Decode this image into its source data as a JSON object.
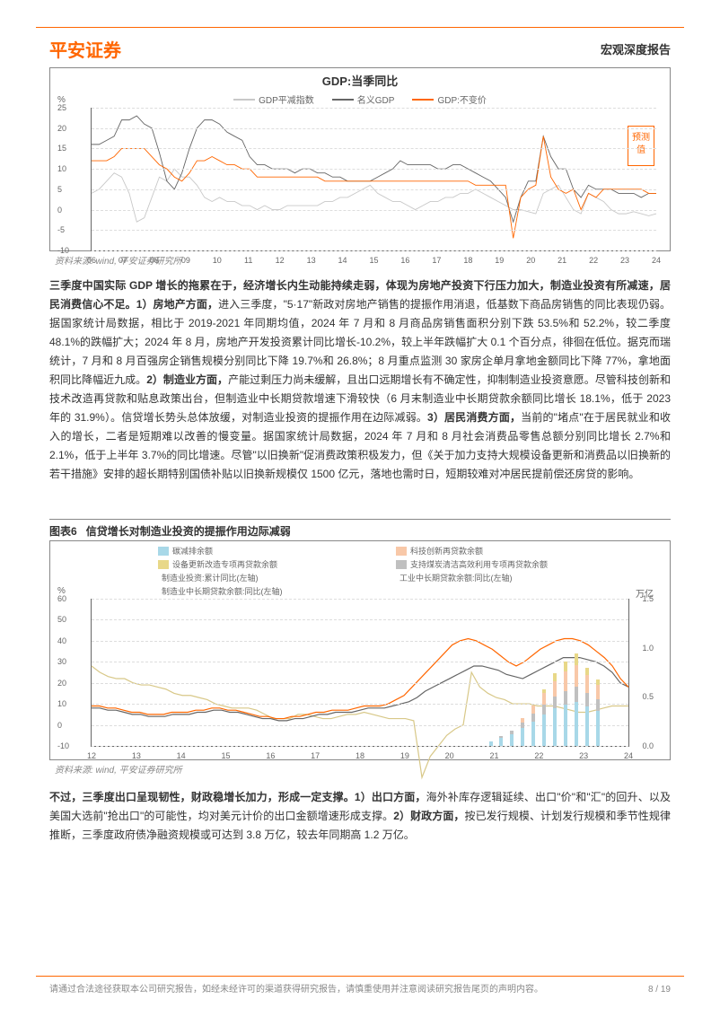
{
  "header": {
    "company": "平安证券",
    "reportType": "宏观深度报告"
  },
  "chart1": {
    "title": "GDP:当季同比",
    "type": "line",
    "yUnit": "%",
    "ylim": [
      -10,
      25
    ],
    "yticks": [
      -10,
      -5,
      0,
      5,
      10,
      15,
      20,
      25
    ],
    "xlabels": [
      "06",
      "07",
      "08",
      "09",
      "10",
      "11",
      "12",
      "13",
      "14",
      "15",
      "16",
      "17",
      "18",
      "19",
      "20",
      "21",
      "22",
      "23",
      "24"
    ],
    "forecastLabel": "预测值",
    "series": [
      {
        "name": "GDP平减指数",
        "color": "#c8c8c8",
        "values": [
          4,
          5,
          7,
          9,
          8,
          4,
          -3,
          -2,
          3,
          8,
          7,
          10,
          8,
          8,
          6,
          3,
          2,
          3,
          2,
          2,
          1,
          1,
          0,
          1,
          0,
          0,
          1,
          1,
          1,
          1,
          1,
          2,
          2,
          3,
          3,
          4,
          5,
          6,
          4,
          3,
          2,
          2,
          1,
          0,
          1,
          2,
          2,
          3,
          3,
          4,
          4,
          5,
          4,
          3,
          2,
          1,
          0,
          0,
          -0.5,
          -1,
          4,
          5,
          6,
          3,
          0,
          -1,
          4,
          3,
          2,
          0,
          -1,
          -1,
          -0.5,
          -1,
          -1.5,
          -1
        ]
      },
      {
        "name": "名义GDP",
        "color": "#666666",
        "values": [
          16,
          16,
          17,
          18,
          22,
          22,
          23,
          21,
          20,
          14,
          7,
          5,
          9,
          15,
          20,
          22,
          22,
          21,
          19,
          18,
          17,
          13,
          11,
          11,
          10,
          10,
          10,
          9,
          10,
          10,
          9,
          9,
          8,
          8,
          7,
          7,
          7,
          7,
          8,
          9,
          10,
          12,
          11,
          11,
          11,
          11,
          10,
          10,
          11,
          11,
          10,
          9,
          8,
          7,
          5,
          3,
          -3,
          3,
          7,
          7,
          18,
          13,
          10,
          10,
          5,
          3,
          6,
          5,
          5,
          5,
          4,
          4,
          4,
          3,
          4,
          4
        ]
      },
      {
        "name": "GDP:不变价",
        "color": "#ff6600",
        "values": [
          12,
          12,
          12,
          13,
          15,
          15,
          15,
          15,
          13,
          11,
          10,
          8,
          7,
          9,
          12,
          12,
          13,
          12,
          11,
          11,
          10,
          10,
          8,
          8,
          8,
          8,
          8,
          8,
          8,
          8,
          8,
          7,
          7,
          7,
          7,
          7,
          7,
          7,
          7,
          7,
          7,
          7,
          7,
          7,
          7,
          7,
          7,
          7,
          7,
          7,
          7,
          6,
          6,
          6,
          6,
          6,
          -7,
          3,
          5,
          6,
          18,
          8,
          5,
          4,
          5,
          0,
          4,
          3,
          5,
          5,
          5,
          5,
          5,
          5,
          4,
          4
        ]
      }
    ],
    "source": "资料来源: wind, 平安证券研究所"
  },
  "para1": {
    "lead": "三季度中国实际 GDP 增长的拖累在于，经济增长内生动能持续走弱，体现为房地产投资下行压力加大，制造业投资有所减速，居民消费信心不足。",
    "p1label": "1）房地产方面，",
    "p1text": "进入三季度，\"5·17\"新政对房地产销售的提振作用消退，低基数下商品房销售的同比表现仍弱。据国家统计局数据，相比于 2019-2021 年同期均值，2024 年 7 月和 8 月商品房销售面积分别下跌 53.5%和 52.2%，较二季度 48.1%的跌幅扩大；2024 年 8 月，房地产开发投资累计同比增长-10.2%，较上半年跌幅扩大 0.1 个百分点，徘徊在低位。据克而瑞统计，7 月和 8 月百强房企销售规模分别同比下降 19.7%和 26.8%；8 月重点监测 30 家房企单月拿地金额同比下降 77%，拿地面积同比降幅近九成。",
    "p2label": "2）制造业方面，",
    "p2text": "产能过剩压力尚未缓解，且出口远期增长有不确定性，抑制制造业投资意愿。尽管科技创新和技术改造再贷款和贴息政策出台，但制造业中长期贷款增速下滑较快（6 月末制造业中长期贷款余额同比增长 18.1%，低于 2023 年的 31.9%）。信贷增长势头总体放缓，对制造业投资的提振作用在边际减弱。",
    "p3label": "3）居民消费方面，",
    "p3text": "当前的\"堵点\"在于居民就业和收入的增长，二者是短期难以改善的慢变量。据国家统计局数据，2024 年 7 月和 8 月社会消费品零售总额分别同比增长 2.7%和 2.1%，低于上半年 3.7%的同比增速。尽管\"以旧换新\"促消费政策积极发力，但《关于加力支持大规模设备更新和消费品以旧换新的若干措施》安排的超长期特别国债补贴以旧换新规模仅 1500 亿元，落地也需时日，短期较难对冲居民提前偿还房贷的影响。"
  },
  "chart2": {
    "headerLabel": "图表6",
    "headerTitle": "信贷增长对制造业投资的提振作用边际减弱",
    "type": "line-bar-composite",
    "yLeftUnit": "%",
    "yRightUnit": "万亿",
    "yLeftLim": [
      -10,
      60
    ],
    "yLeftTicks": [
      -10,
      0,
      10,
      20,
      30,
      40,
      50,
      60
    ],
    "yRightLim": [
      0,
      1.5
    ],
    "yRightTicks": [
      0,
      0.5,
      1.0,
      1.5
    ],
    "xlabels": [
      "12",
      "13",
      "14",
      "15",
      "16",
      "17",
      "18",
      "19",
      "20",
      "21",
      "22",
      "23",
      "24"
    ],
    "legend": [
      {
        "name": "碳减排余额",
        "type": "bar",
        "color": "#a8d8e8"
      },
      {
        "name": "科技创新再贷款余额",
        "type": "bar",
        "color": "#f8c8a8"
      },
      {
        "name": "设备更新改造专项再贷款余额",
        "type": "bar",
        "color": "#e8d888"
      },
      {
        "name": "支持煤炭清洁高效利用专项再贷款余额",
        "type": "bar",
        "color": "#c0c0c0"
      },
      {
        "name": "制造业投资:累计同比(左轴)",
        "type": "line",
        "color": "#d8c888"
      },
      {
        "name": "工业中长期贷款余额:同比(左轴)",
        "type": "line",
        "color": "#666666"
      },
      {
        "name": "制造业中长期贷款余额:同比(左轴)",
        "type": "line",
        "color": "#ff6600"
      }
    ],
    "lineSeries": [
      {
        "name": "制造业投资:累计同比(左轴)",
        "color": "#d8c888",
        "values": [
          28,
          25,
          23,
          22,
          22,
          20,
          19,
          19,
          18,
          17,
          15,
          14,
          14,
          13,
          12,
          10,
          9,
          8,
          8,
          8,
          7,
          5,
          3,
          3,
          3,
          5,
          5,
          4,
          3,
          3,
          4,
          5,
          5,
          6,
          5,
          4,
          3,
          3,
          3,
          2,
          -25,
          -15,
          -10,
          -5,
          -2,
          0,
          25,
          18,
          15,
          13,
          12,
          10,
          10,
          10,
          9,
          9,
          9,
          8,
          7,
          6,
          6,
          7,
          8,
          9,
          9,
          9
        ]
      },
      {
        "name": "工业中长期贷款余额:同比(左轴)",
        "color": "#666666",
        "values": [
          8,
          8,
          7,
          7,
          6,
          5,
          5,
          4,
          4,
          4,
          5,
          5,
          5,
          6,
          6,
          7,
          7,
          6,
          6,
          5,
          4,
          3,
          3,
          2,
          2,
          3,
          3,
          4,
          5,
          5,
          6,
          6,
          6,
          7,
          8,
          8,
          8,
          9,
          10,
          11,
          13,
          16,
          18,
          20,
          22,
          24,
          26,
          28,
          28,
          27,
          26,
          24,
          23,
          22,
          24,
          26,
          28,
          30,
          32,
          32,
          32,
          31,
          30,
          28,
          25,
          20,
          18
        ]
      },
      {
        "name": "制造业中长期贷款余额:同比(左轴)",
        "color": "#ff6600",
        "values": [
          9,
          9,
          8,
          8,
          7,
          6,
          6,
          5,
          5,
          5,
          6,
          6,
          6,
          7,
          7,
          8,
          8,
          7,
          7,
          6,
          5,
          4,
          4,
          3,
          3,
          4,
          4,
          5,
          6,
          6,
          7,
          7,
          7,
          8,
          9,
          9,
          9,
          10,
          12,
          14,
          18,
          22,
          26,
          30,
          34,
          38,
          40,
          41,
          40,
          38,
          36,
          33,
          30,
          28,
          30,
          33,
          36,
          38,
          40,
          41,
          41,
          40,
          38,
          35,
          32,
          28,
          22,
          18
        ]
      }
    ],
    "bars": [
      {
        "x": 0.74,
        "stacks": [
          {
            "c": "#a8d8e8",
            "h": 0.05
          }
        ]
      },
      {
        "x": 0.76,
        "stacks": [
          {
            "c": "#a8d8e8",
            "h": 0.08
          },
          {
            "c": "#c0c0c0",
            "h": 0.02
          }
        ]
      },
      {
        "x": 0.78,
        "stacks": [
          {
            "c": "#a8d8e8",
            "h": 0.12
          },
          {
            "c": "#c0c0c0",
            "h": 0.04
          }
        ]
      },
      {
        "x": 0.8,
        "stacks": [
          {
            "c": "#a8d8e8",
            "h": 0.18
          },
          {
            "c": "#c0c0c0",
            "h": 0.06
          },
          {
            "c": "#f8c8a8",
            "h": 0.04
          }
        ]
      },
      {
        "x": 0.82,
        "stacks": [
          {
            "c": "#a8d8e8",
            "h": 0.25
          },
          {
            "c": "#c0c0c0",
            "h": 0.08
          },
          {
            "c": "#f8c8a8",
            "h": 0.08
          }
        ]
      },
      {
        "x": 0.84,
        "stacks": [
          {
            "c": "#a8d8e8",
            "h": 0.32
          },
          {
            "c": "#c0c0c0",
            "h": 0.1
          },
          {
            "c": "#f8c8a8",
            "h": 0.12
          },
          {
            "c": "#e8d888",
            "h": 0.04
          }
        ]
      },
      {
        "x": 0.86,
        "stacks": [
          {
            "c": "#a8d8e8",
            "h": 0.38
          },
          {
            "c": "#c0c0c0",
            "h": 0.12
          },
          {
            "c": "#f8c8a8",
            "h": 0.16
          },
          {
            "c": "#e8d888",
            "h": 0.08
          }
        ]
      },
      {
        "x": 0.88,
        "stacks": [
          {
            "c": "#a8d8e8",
            "h": 0.42
          },
          {
            "c": "#c0c0c0",
            "h": 0.14
          },
          {
            "c": "#f8c8a8",
            "h": 0.2
          },
          {
            "c": "#e8d888",
            "h": 0.1
          }
        ]
      },
      {
        "x": 0.9,
        "stacks": [
          {
            "c": "#a8d8e8",
            "h": 0.45
          },
          {
            "c": "#c0c0c0",
            "h": 0.15
          },
          {
            "c": "#f8c8a8",
            "h": 0.22
          },
          {
            "c": "#e8d888",
            "h": 0.12
          }
        ]
      },
      {
        "x": 0.92,
        "stacks": [
          {
            "c": "#a8d8e8",
            "h": 0.4
          },
          {
            "c": "#c0c0c0",
            "h": 0.14
          },
          {
            "c": "#f8c8a8",
            "h": 0.18
          },
          {
            "c": "#e8d888",
            "h": 0.08
          }
        ]
      },
      {
        "x": 0.94,
        "stacks": [
          {
            "c": "#a8d8e8",
            "h": 0.36
          },
          {
            "c": "#c0c0c0",
            "h": 0.12
          },
          {
            "c": "#f8c8a8",
            "h": 0.14
          },
          {
            "c": "#e8d888",
            "h": 0.06
          }
        ]
      }
    ],
    "source": "资料来源: wind, 平安证券研究所"
  },
  "para2": {
    "lead": "不过，三季度出口呈现韧性，财政稳增长加力，形成一定支撑。",
    "p1label": "1）出口方面，",
    "p1text": "海外补库存逻辑延续、出口\"价\"和\"汇\"的回升、以及美国大选前\"抢出口\"的可能性，均对美元计价的出口金额增速形成支撑。",
    "p2label": "2）财政方面，",
    "p2text": "按已发行规模、计划发行规模和季节性规律推断，三季度政府债净融资规模或可达到 3.8 万亿，较去年同期高 1.2 万亿。"
  },
  "footer": {
    "disclaimer": "请通过合法途径获取本公司研究报告，如经未经许可的渠道获得研究报告，请慎重使用并注意阅读研究报告尾页的声明内容。",
    "pageNum": "8 / 19"
  }
}
